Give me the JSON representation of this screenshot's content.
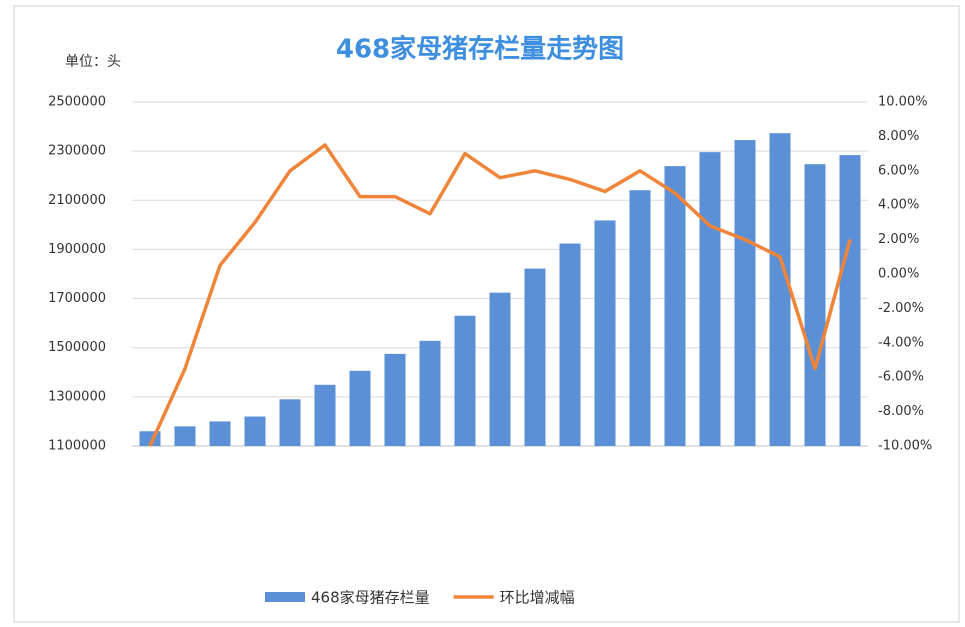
{
  "chart_data": {
    "type": "bar_line",
    "title": "468家母猪存栏量走势图",
    "unit_label": "单位：头",
    "categories": [
      null,
      null,
      null,
      null,
      null,
      null,
      null,
      null,
      null,
      null,
      null,
      null,
      null,
      null,
      null,
      null,
      null,
      null,
      null,
      null,
      null
    ],
    "series": [
      {
        "name": "468家母猪存栏量",
        "type": "bar",
        "color": "#5b8fd6",
        "axis": "y",
        "values": [
          1160000,
          1180000,
          1200000,
          1220000,
          1290000,
          1349000,
          1406000,
          1475000,
          1528000,
          1630000,
          1724000,
          1822000,
          1924000,
          2018000,
          2141000,
          2239000,
          2296000,
          2345000,
          2373000,
          2247000,
          2284000
        ]
      },
      {
        "name": "环比增减幅",
        "type": "line",
        "color": "#f0853a",
        "axis": "y2",
        "values": [
          -10,
          -5.5,
          0.5,
          3,
          6,
          7.5,
          4.5,
          4.5,
          3.5,
          7,
          5.6,
          6,
          5.5,
          4.8,
          6,
          4.7,
          2.8,
          2,
          1,
          -5.5,
          2
        ]
      }
    ],
    "ylim": [
      1100000,
      2500000
    ],
    "yticks": [
      1100000,
      1300000,
      1500000,
      1700000,
      1900000,
      2100000,
      2300000,
      2500000
    ],
    "y2lim": [
      -10,
      10
    ],
    "y2ticks": [
      {
        "value": -10,
        "label": "-10.00%"
      },
      {
        "value": -8,
        "label": "-8.00%"
      },
      {
        "value": -6,
        "label": "-6.00%"
      },
      {
        "value": -4,
        "label": "-4.00%"
      },
      {
        "value": -2,
        "label": "-2.00%"
      },
      {
        "value": 0,
        "label": "0.00%"
      },
      {
        "value": 2,
        "label": "2.00%"
      },
      {
        "value": 4,
        "label": "4.00%"
      },
      {
        "value": 6,
        "label": "6.00%"
      },
      {
        "value": 8,
        "label": "8.00%"
      },
      {
        "value": 10,
        "label": "10.00%"
      }
    ],
    "grid": true
  }
}
